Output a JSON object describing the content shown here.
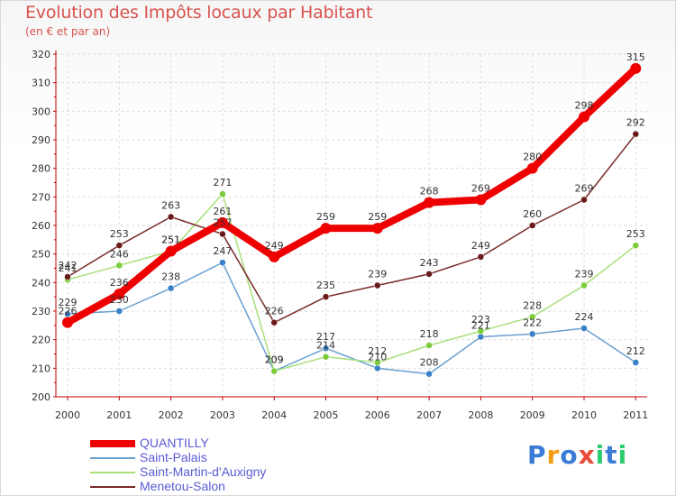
{
  "header": {
    "title": "Evolution des Impôts locaux par Habitant",
    "subtitle": "(en € et par an)"
  },
  "logo": {
    "text": "Proxiti",
    "letters": [
      "P",
      "r",
      "o",
      "x",
      "i",
      "t",
      "i"
    ],
    "colors": [
      "#3a7bd5",
      "#f39c12",
      "#3a7bd5",
      "#e74c3c",
      "#2ecc71",
      "#3a7bd5",
      "#2ecc71"
    ]
  },
  "chart_data": {
    "type": "line",
    "title": "Evolution des Impôts locaux par Habitant",
    "subtitle": "(en € et par an)",
    "xlabel": "",
    "ylabel": "",
    "categories": [
      "2000",
      "2001",
      "2002",
      "2003",
      "2004",
      "2005",
      "2006",
      "2007",
      "2008",
      "2009",
      "2010",
      "2011"
    ],
    "ylim": [
      200,
      320
    ],
    "yticks": [
      200,
      210,
      220,
      230,
      240,
      250,
      260,
      270,
      280,
      290,
      300,
      310,
      320
    ],
    "grid": true,
    "legend_position": "bottom-left",
    "series": [
      {
        "name": "QUANTILLY",
        "color": "#ee0000",
        "marker_color": "#ee0000",
        "values": [
          226,
          236,
          251,
          261,
          249,
          259,
          259,
          268,
          269,
          280,
          298,
          315
        ],
        "bold": true
      },
      {
        "name": "Saint-Palais",
        "color": "#6aa0d0",
        "marker_color": "#3a80c8",
        "values": [
          229,
          230,
          238,
          247,
          209,
          217,
          210,
          208,
          221,
          222,
          224,
          212
        ],
        "bold": false
      },
      {
        "name": "Saint-Martin-d'Auxigny",
        "color": "#a8e07a",
        "marker_color": "#7ccc3a",
        "values": [
          241,
          246,
          251,
          271,
          209,
          214,
          212,
          218,
          223,
          228,
          239,
          253
        ],
        "bold": false
      },
      {
        "name": "Menetou-Salon",
        "color": "#7a2a2a",
        "marker_color": "#6a1a1a",
        "values": [
          242,
          253,
          263,
          257,
          226,
          235,
          239,
          243,
          249,
          260,
          269,
          292
        ],
        "bold": false
      }
    ]
  }
}
